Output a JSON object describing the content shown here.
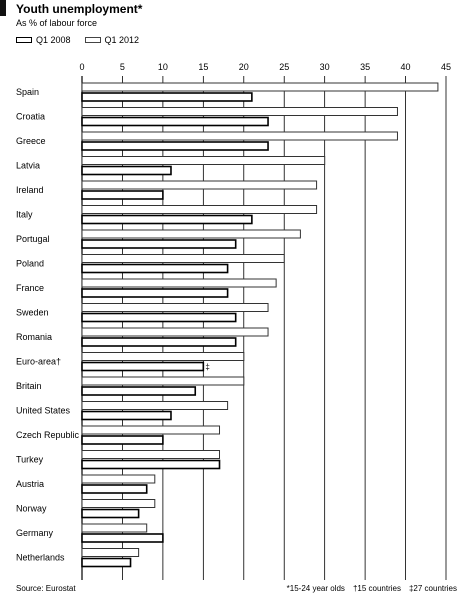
{
  "header": {
    "title": "Youth unemployment*",
    "subtitle": "As % of labour force"
  },
  "legend": {
    "items": [
      {
        "label": "Q1 2008"
      },
      {
        "label": "Q1 2012"
      }
    ]
  },
  "footer": {
    "source": "Source: Eurostat",
    "notes": [
      "*15-24 year olds",
      "†15 countries",
      "‡27 countries"
    ]
  },
  "chart_data": {
    "type": "bar",
    "orientation": "horizontal",
    "title": "Youth unemployment*",
    "subtitle": "As % of labour force",
    "xlim": [
      0,
      45
    ],
    "ticks": [
      0,
      5,
      10,
      15,
      20,
      25,
      30,
      35,
      40,
      45
    ],
    "grid": true,
    "legend_position": "top-left",
    "categories": [
      "Spain",
      "Croatia",
      "Greece",
      "Latvia",
      "Ireland",
      "Italy",
      "Portugal",
      "Poland",
      "France",
      "Sweden",
      "Romania",
      "Euro-area",
      "Britain",
      "United States",
      "Czech Republic",
      "Turkey",
      "Austria",
      "Norway",
      "Germany",
      "Netherlands"
    ],
    "category_markers": {
      "Euro-area": "†"
    },
    "series": [
      {
        "name": "Q1 2008",
        "values": [
          21,
          23,
          23,
          11,
          10,
          21,
          19,
          18,
          18,
          19,
          19,
          15,
          14,
          11,
          10,
          17,
          8,
          7,
          10,
          6
        ]
      },
      {
        "name": "Q1 2012",
        "values": [
          44,
          39,
          39,
          30,
          29,
          29,
          27,
          25,
          24,
          23,
          23,
          20,
          20,
          18,
          17,
          17,
          9,
          9,
          8,
          7
        ]
      }
    ],
    "value_markers": [
      {
        "category": "Euro-area",
        "series": "Q1 2008",
        "text": "‡"
      }
    ]
  }
}
